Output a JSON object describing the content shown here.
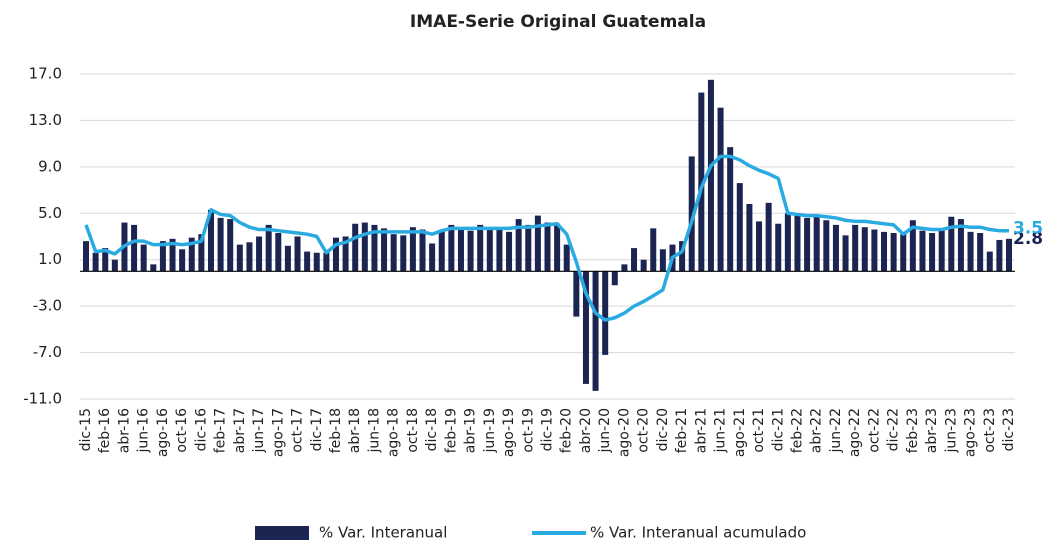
{
  "chart_data": {
    "type": "bar-line",
    "title": "IMAE-Serie Original Guatemala",
    "categories": [
      "dic-15",
      null,
      "feb-16",
      null,
      "abr-16",
      null,
      "jun-16",
      null,
      "ago-16",
      null,
      "oct-16",
      null,
      "dic-16",
      null,
      "feb-17",
      null,
      "abr-17",
      null,
      "jun-17",
      null,
      "ago-17",
      null,
      "oct-17",
      null,
      "dic-17",
      null,
      "feb-18",
      null,
      "abr-18",
      null,
      "jun-18",
      null,
      "ago-18",
      null,
      "oct-18",
      null,
      "dic-18",
      null,
      "feb-19",
      null,
      "abr-19",
      null,
      "jun-19",
      null,
      "ago-19",
      null,
      "oct-19",
      null,
      "dic-19",
      null,
      "feb-20",
      null,
      "abr-20",
      null,
      "jun-20",
      null,
      "ago-20",
      null,
      "oct-20",
      null,
      "dic-20",
      null,
      "feb-21",
      null,
      "abr-21",
      null,
      "jun-21",
      null,
      "ago-21",
      null,
      "oct-21",
      null,
      "dic-21",
      null,
      "feb-22",
      null,
      "abr-22",
      null,
      "jun-22",
      null,
      "ago-22",
      null,
      "oct-22",
      null,
      "dic-22",
      null,
      "feb-23",
      null,
      "abr-23",
      null,
      "jun-23",
      null,
      "ago-23",
      null,
      "oct-23",
      null,
      "dic-23"
    ],
    "series": [
      {
        "name": "% Var. Interanual",
        "type": "bar",
        "color": "#1c2452",
        "values": [
          2.6,
          1.6,
          2.0,
          1.0,
          4.2,
          4.0,
          2.3,
          0.6,
          2.6,
          2.8,
          1.9,
          2.9,
          3.2,
          5.3,
          4.6,
          4.5,
          2.3,
          2.5,
          3.0,
          4.0,
          3.3,
          2.2,
          3.0,
          1.7,
          1.6,
          1.6,
          2.9,
          3.0,
          4.1,
          4.2,
          4.0,
          3.7,
          3.2,
          3.1,
          3.8,
          3.6,
          2.4,
          3.5,
          4.0,
          3.6,
          3.5,
          4.0,
          3.6,
          3.8,
          3.4,
          4.5,
          4.0,
          4.8,
          4.2,
          4.1,
          2.3,
          -3.9,
          -9.7,
          -10.3,
          -7.2,
          -1.2,
          0.6,
          2.0,
          1.0,
          3.7,
          1.9,
          2.3,
          2.6,
          9.9,
          15.4,
          16.5,
          14.1,
          10.7,
          7.6,
          5.8,
          4.3,
          5.9,
          4.1,
          5.0,
          4.8,
          4.6,
          4.7,
          4.4,
          4.0,
          3.1,
          4.0,
          3.8,
          3.6,
          3.4,
          3.3,
          3.2,
          4.4,
          3.5,
          3.3,
          3.5,
          4.7,
          4.5,
          3.4,
          3.3,
          1.7,
          2.7,
          2.8
        ]
      },
      {
        "name": "% Var. Interanual acumulado",
        "type": "line",
        "color": "#29abe2",
        "values": [
          4.0,
          1.7,
          1.8,
          1.5,
          2.2,
          2.6,
          2.6,
          2.3,
          2.3,
          2.4,
          2.3,
          2.4,
          2.6,
          5.3,
          4.9,
          4.8,
          4.2,
          3.8,
          3.6,
          3.6,
          3.5,
          3.4,
          3.3,
          3.2,
          3.0,
          1.6,
          2.3,
          2.5,
          2.9,
          3.2,
          3.4,
          3.4,
          3.4,
          3.4,
          3.4,
          3.4,
          3.2,
          3.5,
          3.7,
          3.7,
          3.7,
          3.7,
          3.7,
          3.7,
          3.7,
          3.8,
          3.8,
          3.9,
          4.0,
          4.1,
          3.2,
          0.8,
          -1.9,
          -3.6,
          -4.2,
          -4.0,
          -3.6,
          -3.0,
          -2.6,
          -2.1,
          -1.6,
          1.2,
          1.7,
          4.3,
          7.2,
          9.1,
          9.9,
          9.9,
          9.6,
          9.1,
          8.7,
          8.4,
          8.0,
          5.0,
          4.9,
          4.8,
          4.8,
          4.7,
          4.6,
          4.4,
          4.3,
          4.3,
          4.2,
          4.1,
          4.0,
          3.2,
          3.8,
          3.7,
          3.6,
          3.6,
          3.8,
          3.9,
          3.8,
          3.8,
          3.6,
          3.5,
          3.5
        ]
      }
    ],
    "ylim": [
      -11,
      17
    ],
    "yticks": [
      {
        "value": -11,
        "label": "-11.0"
      },
      {
        "value": -7,
        "label": "-7.0"
      },
      {
        "value": -3,
        "label": "-3.0"
      },
      {
        "value": 1,
        "label": "1.0"
      },
      {
        "value": 5,
        "label": "5.0"
      },
      {
        "value": 9,
        "label": "9.0"
      },
      {
        "value": 13,
        "label": "13.0"
      },
      {
        "value": 17,
        "label": "17.0"
      }
    ],
    "grid": true,
    "legend": "bottom"
  }
}
